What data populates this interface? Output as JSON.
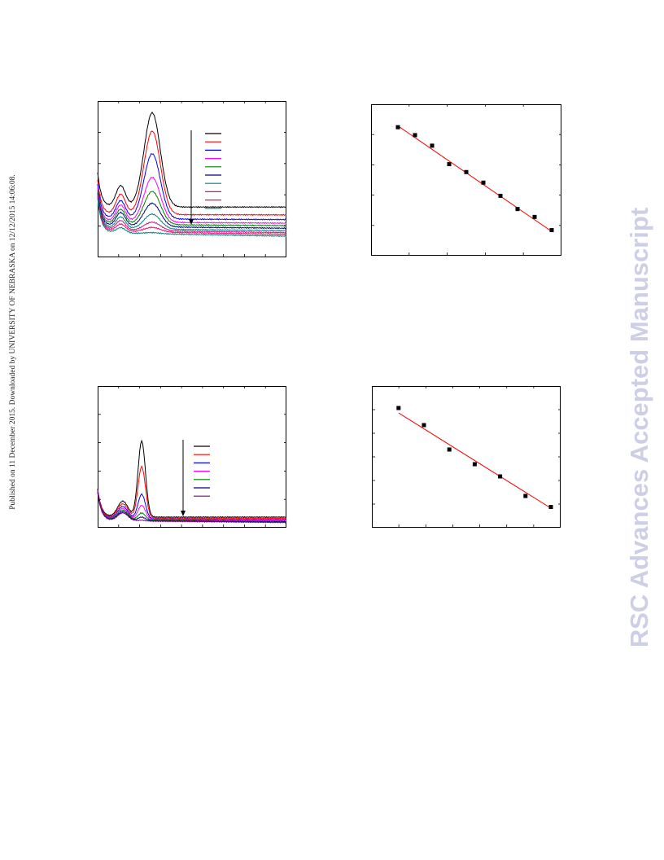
{
  "side_note": "Published on 11 December 2015. Downloaded by UNIVERSITY OF NEBRASKA on 12/12/2015 14:06:08.",
  "watermark": "RSC Advances Accepted Manuscript",
  "colors": {
    "frame": "#000000",
    "fit_line": "#ff0000",
    "watermark": "#cdcfe6"
  },
  "chart_data": [
    {
      "id": "top-left",
      "type": "line",
      "xlabel": "",
      "ylabel": "",
      "xlim": [
        0,
        9
      ],
      "ylim": [
        0,
        7.3
      ],
      "arrow": "down",
      "legend": "top-right",
      "baseline": 1.1,
      "features": [
        {
          "center": 2.6,
          "width": 0.55,
          "kind": "peak"
        },
        {
          "center": 1.1,
          "width": 0.32,
          "kind": "shoulder"
        }
      ],
      "series": [
        {
          "color": "#000000",
          "peak": 4.4,
          "shoulder": 1.0,
          "tail": 1.25
        },
        {
          "color": "#ff0000",
          "peak": 3.9,
          "shoulder": 0.95,
          "tail": 0.9
        },
        {
          "color": "#0000ff",
          "peak": 3.05,
          "shoulder": 0.85,
          "tail": 0.7
        },
        {
          "color": "#ff00ff",
          "peak": 2.1,
          "shoulder": 0.8,
          "tail": 0.55
        },
        {
          "color": "#008000",
          "peak": 1.55,
          "shoulder": 0.7,
          "tail": 0.45
        },
        {
          "color": "#000080",
          "peak": 1.1,
          "shoulder": 0.65,
          "tail": 0.35
        },
        {
          "color": "#008080",
          "peak": 0.7,
          "shoulder": 0.55,
          "tail": 0.25
        },
        {
          "color": "#c71585",
          "peak": 0.4,
          "shoulder": 0.45,
          "tail": 0.18
        },
        {
          "color": "#ff0066",
          "peak": 0.22,
          "shoulder": 0.35,
          "tail": 0.12
        },
        {
          "color": "#008080",
          "peak": 0.05,
          "shoulder": 0.25,
          "tail": 0.05
        }
      ]
    },
    {
      "id": "top-right",
      "type": "scatter",
      "xlabel": "",
      "ylabel": "",
      "xlim": [
        0,
        10
      ],
      "ylim": [
        0,
        10
      ],
      "grid": false,
      "points": [
        {
          "x": 1,
          "y": 9.0
        },
        {
          "x": 2,
          "y": 8.4
        },
        {
          "x": 3,
          "y": 7.6
        },
        {
          "x": 4,
          "y": 6.2
        },
        {
          "x": 5,
          "y": 5.6
        },
        {
          "x": 6,
          "y": 4.8
        },
        {
          "x": 7,
          "y": 3.8
        },
        {
          "x": 8,
          "y": 2.8
        },
        {
          "x": 9,
          "y": 2.2
        },
        {
          "x": 10,
          "y": 1.2
        }
      ],
      "fit": {
        "x": [
          1,
          10
        ],
        "y": [
          9.1,
          1.1
        ]
      }
    },
    {
      "id": "bottom-left",
      "type": "line",
      "xlabel": "",
      "ylabel": "",
      "xlim": [
        0,
        9
      ],
      "ylim": [
        0,
        8
      ],
      "arrow": "down",
      "legend": "top-right",
      "baseline": 0.3,
      "features": [
        {
          "center": 2.1,
          "width": 0.25,
          "kind": "peak"
        },
        {
          "center": 1.2,
          "width": 0.35,
          "kind": "shoulder"
        }
      ],
      "series": [
        {
          "color": "#000000",
          "peak": 4.3,
          "shoulder": 0.9,
          "tail": 0.3
        },
        {
          "color": "#ff0000",
          "peak": 2.9,
          "shoulder": 0.8,
          "tail": 0.25
        },
        {
          "color": "#0000ff",
          "peak": 1.4,
          "shoulder": 0.7,
          "tail": 0.2
        },
        {
          "color": "#ff00ff",
          "peak": 0.8,
          "shoulder": 0.6,
          "tail": 0.18
        },
        {
          "color": "#008000",
          "peak": 0.4,
          "shoulder": 0.55,
          "tail": 0.15
        },
        {
          "color": "#000080",
          "peak": 0.2,
          "shoulder": 0.5,
          "tail": 0.12
        },
        {
          "color": "#800080",
          "peak": 0.05,
          "shoulder": 0.45,
          "tail": 0.1
        }
      ]
    },
    {
      "id": "bottom-right",
      "type": "scatter",
      "xlabel": "",
      "ylabel": "",
      "xlim": [
        0,
        10
      ],
      "ylim": [
        0,
        10
      ],
      "grid": false,
      "points": [
        {
          "x": 1,
          "y": 9.0
        },
        {
          "x": 2.5,
          "y": 7.6
        },
        {
          "x": 4,
          "y": 5.6
        },
        {
          "x": 5.5,
          "y": 4.4
        },
        {
          "x": 7,
          "y": 3.4
        },
        {
          "x": 8.5,
          "y": 1.8
        },
        {
          "x": 10,
          "y": 0.9
        }
      ],
      "fit": {
        "x": [
          1,
          10
        ],
        "y": [
          8.6,
          0.8
        ]
      }
    }
  ]
}
